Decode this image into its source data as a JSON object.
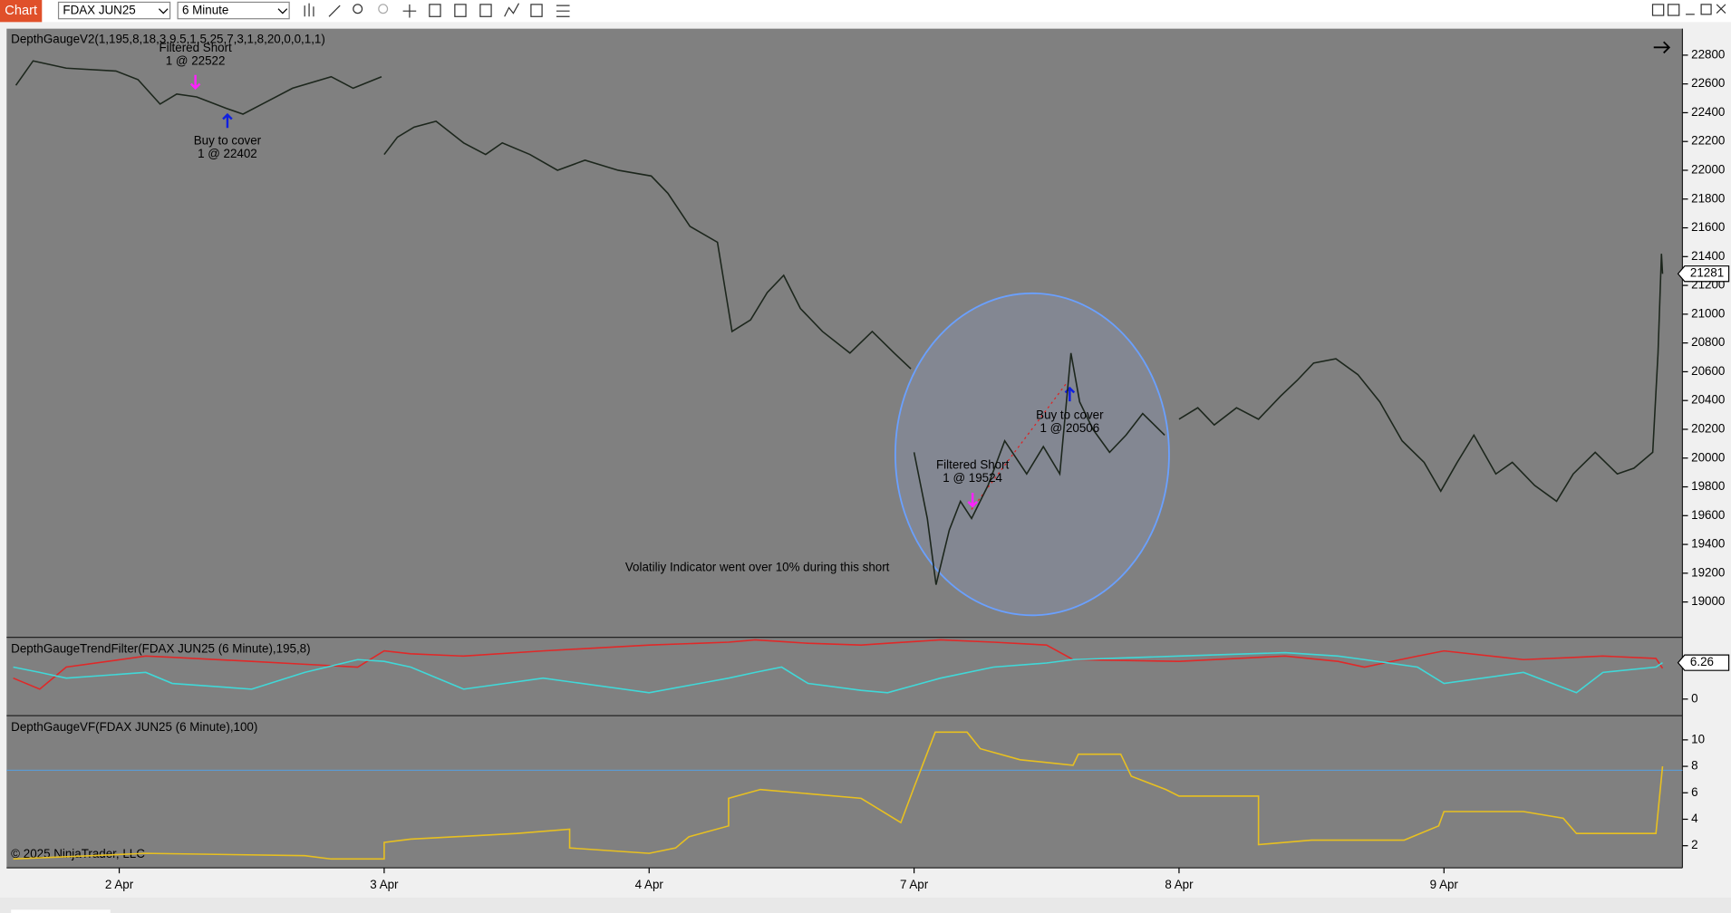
{
  "toolbar": {
    "tab": "Chart",
    "instrument": "FDAX JUN25",
    "interval": "6 Minute"
  },
  "copyright": "© 2025 NinjaTrader, LLC",
  "x_axis": {
    "xlim": [
      -0.425,
      5.9
    ],
    "xticks": [
      {
        "value": 0,
        "label": "2 Apr"
      },
      {
        "value": 1,
        "label": "3 Apr"
      },
      {
        "value": 2,
        "label": "4 Apr"
      },
      {
        "value": 3,
        "label": "7 Apr"
      },
      {
        "value": 4,
        "label": "8 Apr"
      },
      {
        "value": 5,
        "label": "9 Apr"
      }
    ]
  },
  "chart_data": [
    {
      "type": "line",
      "title": "DepthGaugeV2(1,195,8,18,3,9.5,1.5,25,7,3,1,8,20,0,0,1,1)",
      "ylim": [
        18762,
        22984
      ],
      "yticks": [
        19000,
        19200,
        19400,
        19600,
        19800,
        20000,
        20200,
        20400,
        20600,
        20800,
        21000,
        21200,
        21400,
        21600,
        21800,
        22000,
        22200,
        22400,
        22600,
        22800
      ],
      "last_value": 21281,
      "annotations": [
        "Filtered Short",
        "1 @ 22522",
        "Buy to cover",
        "1 @ 22402",
        "Filtered Short",
        "1 @ 19524",
        "Buy to cover",
        "1 @ 20506",
        "Volatiliy Indicator went over 10% during this short"
      ],
      "x": [
        -0.39,
        -0.325,
        -0.2,
        -0.0125,
        0.071,
        0.154,
        0.217,
        0.292,
        0.404,
        0.467,
        0.55,
        0.654,
        0.8,
        0.883,
        0.99,
        0.995,
        1.0,
        1.05,
        1.113,
        1.196,
        1.3,
        1.383,
        1.446,
        1.55,
        1.654,
        1.758,
        1.883,
        2.008,
        2.071,
        2.154,
        2.258,
        2.313,
        2.383,
        2.446,
        2.508,
        2.571,
        2.654,
        2.758,
        2.842,
        2.925,
        2.988,
        2.994,
        3.0,
        3.05,
        3.083,
        3.133,
        3.175,
        3.217,
        3.279,
        3.342,
        3.425,
        3.488,
        3.55,
        3.592,
        3.625,
        3.675,
        3.738,
        3.8,
        3.863,
        3.946,
        3.97,
        4.0,
        4.071,
        4.133,
        4.217,
        4.3,
        4.383,
        4.446,
        4.508,
        4.592,
        4.675,
        4.758,
        4.842,
        4.925,
        4.988,
        5.05,
        5.113,
        5.196,
        5.258,
        5.342,
        5.425,
        5.488,
        5.571,
        5.654,
        5.717,
        5.788,
        5.808,
        5.821,
        5.825
      ],
      "series": [
        {
          "color": "#1c261c",
          "values": [
            22590,
            22760,
            22710,
            22690,
            22630,
            22460,
            22530,
            22510,
            22430,
            22390,
            22470,
            22570,
            22650,
            22570,
            22650,
            null,
            22110,
            22230,
            22300,
            22340,
            22190,
            22110,
            22190,
            22110,
            22000,
            22070,
            22000,
            21960,
            21840,
            21610,
            21500,
            20880,
            20960,
            21150,
            21270,
            21040,
            20880,
            20730,
            20880,
            20730,
            20620,
            null,
            20040,
            19580,
            19120,
            19500,
            19700,
            19580,
            19810,
            20120,
            19890,
            20080,
            19890,
            20730,
            20390,
            20200,
            20040,
            20160,
            20310,
            20160,
            null,
            20270,
            20350,
            20230,
            20350,
            20270,
            20430,
            20540,
            20660,
            20690,
            20580,
            20390,
            20120,
            19970,
            19770,
            19970,
            20160,
            19890,
            19970,
            19810,
            19700,
            19890,
            20040,
            19890,
            19930,
            20040,
            20730,
            21420,
            21281
          ]
        }
      ]
    },
    {
      "type": "line",
      "title": "DepthGaugeTrendFilter(FDAX JUN25 (6 Minute),195,8)",
      "ylim": [
        -2.66,
        10.44
      ],
      "yticks": [
        0
      ],
      "last_value": 6.26,
      "x": [
        -0.4,
        -0.3,
        -0.2,
        0.1,
        0.2,
        0.5,
        0.7,
        0.9,
        1.0,
        1.1,
        1.3,
        1.6,
        2.0,
        2.3,
        2.4,
        2.5,
        2.6,
        2.8,
        2.9,
        3.1,
        3.3,
        3.5,
        3.6,
        4.0,
        4.4,
        4.6,
        4.7,
        4.9,
        5.0,
        5.3,
        5.5,
        5.6,
        5.8,
        5.825
      ],
      "series": [
        {
          "color": "#e02828",
          "values": [
            3.6,
            1.7,
            5.5,
            7.4,
            7.2,
            6.5,
            6.0,
            5.5,
            8.3,
            7.8,
            7.4,
            8.3,
            9.3,
            9.8,
            10.2,
            9.9,
            9.6,
            9.3,
            9.6,
            10.2,
            9.8,
            9.3,
            6.8,
            6.5,
            7.4,
            6.5,
            5.5,
            7.4,
            8.3,
            6.8,
            7.2,
            7.4,
            7.0,
            5.3
          ]
        },
        {
          "color": "#40d8d8",
          "values": [
            5.5,
            4.6,
            3.6,
            4.6,
            2.7,
            1.7,
            4.6,
            6.8,
            6.5,
            5.5,
            1.7,
            3.6,
            1.1,
            3.6,
            4.6,
            5.5,
            2.7,
            1.5,
            1.1,
            3.6,
            5.5,
            6.2,
            6.8,
            7.4,
            8.0,
            7.4,
            6.8,
            5.5,
            2.7,
            4.6,
            1.1,
            4.6,
            5.5,
            6.26
          ]
        }
      ]
    },
    {
      "type": "line",
      "title": "DepthGaugeVF(FDAX JUN25 (6 Minute),100)",
      "ylim": [
        0.33,
        11.75
      ],
      "yticks": [
        2,
        4,
        6,
        8,
        10
      ],
      "hline": 7.7,
      "hline_color": "#5b9bd5",
      "x": [
        -0.4,
        0.1,
        0.7,
        0.8,
        1.0,
        1.0,
        1.1,
        1.5,
        1.7,
        1.7,
        2.0,
        2.1,
        2.15,
        2.3,
        2.3,
        2.42,
        2.8,
        2.95,
        3.0,
        3.08,
        3.2,
        3.25,
        3.4,
        3.6,
        3.62,
        3.78,
        3.82,
        3.95,
        4.0,
        4.3,
        4.3,
        4.5,
        4.85,
        4.98,
        5.0,
        5.3,
        5.45,
        5.5,
        5.8,
        5.825
      ],
      "series": [
        {
          "color": "#e8c020",
          "values": [
            1.0,
            1.42,
            1.25,
            1.0,
            1.0,
            2.25,
            2.5,
            2.92,
            3.25,
            1.83,
            1.42,
            1.83,
            2.67,
            3.5,
            5.58,
            6.25,
            5.58,
            3.75,
            6.42,
            10.58,
            10.58,
            9.33,
            8.5,
            8.08,
            8.92,
            8.92,
            7.25,
            6.25,
            5.75,
            5.75,
            2.08,
            2.42,
            2.42,
            3.5,
            4.58,
            4.58,
            4.08,
            2.92,
            2.92,
            8.0
          ]
        }
      ]
    }
  ]
}
